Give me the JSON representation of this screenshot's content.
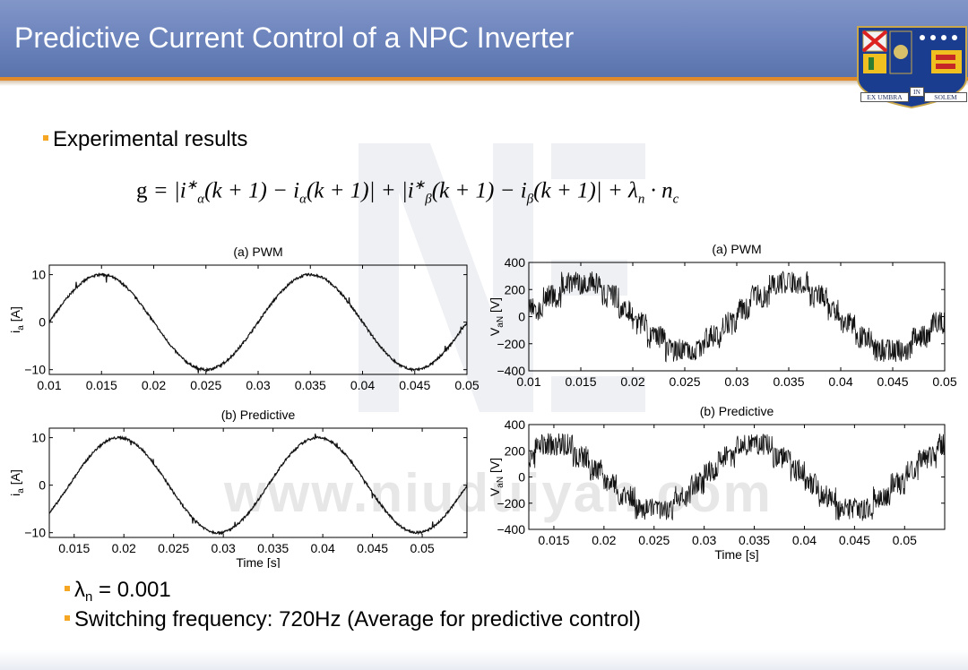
{
  "slide": {
    "title": "Predictive Current Control of a NPC Inverter",
    "bullet_main": "Experimental results",
    "formula_text": "g = |i*α(k+1) − iα(k+1)| + |i*β(k+1) − iβ(k+1)| + λn · nc",
    "lambda_symbol": "λ",
    "lambda_sub": "n",
    "lambda_value": " = 0.001",
    "switching_text": "Switching frequency: 720Hz (Average for predictive control)",
    "watermark": "www.niuduiyan.com",
    "crest_motto_left": "EX UMBRA",
    "crest_motto_mid": "IN",
    "crest_motto_right": "SOLEM",
    "colors": {
      "header": "#6f86be",
      "accent": "#e08a2c",
      "bullet": "#f5a623",
      "waveform": "#111111"
    }
  },
  "chart_data": [
    {
      "type": "line",
      "id": "current-pwm",
      "title": "(a)    PWM",
      "xlabel": "",
      "ylabel": "i_a [A]",
      "ylabel_main": "i",
      "ylabel_sub": "a",
      "ylabel_unit": " [A]",
      "xlim": [
        0.01,
        0.05
      ],
      "ylim": [
        -11,
        12
      ],
      "xticks": [
        0.01,
        0.015,
        0.02,
        0.025,
        0.03,
        0.035,
        0.04,
        0.045,
        0.05
      ],
      "xtick_labels": [
        "0.01",
        "0.015",
        "0.02",
        "0.025",
        "0.03",
        "0.035",
        "0.04",
        "0.045",
        "0.05"
      ],
      "yticks": [
        -10,
        0,
        10
      ],
      "ytick_labels": [
        "−10",
        "0",
        "10"
      ],
      "waveform": {
        "kind": "sine",
        "amplitude": 10,
        "frequency": 50,
        "peak_time": 0.015,
        "ripple": "low"
      }
    },
    {
      "type": "line",
      "id": "current-predictive",
      "title": "(b)    Predictive",
      "xlabel": "Time [s]",
      "ylabel": "i_a [A]",
      "ylabel_main": "i",
      "ylabel_sub": "a",
      "ylabel_unit": " [A]",
      "xlim": [
        0.0125,
        0.0545
      ],
      "ylim": [
        -11,
        12
      ],
      "xticks": [
        0.015,
        0.02,
        0.025,
        0.03,
        0.035,
        0.04,
        0.045,
        0.05
      ],
      "xtick_labels": [
        "0.015",
        "0.02",
        "0.025",
        "0.03",
        "0.035",
        "0.04",
        "0.045",
        "0.05"
      ],
      "yticks": [
        -10,
        0,
        10
      ],
      "ytick_labels": [
        "−10",
        "0",
        "10"
      ],
      "waveform": {
        "kind": "sine",
        "amplitude": 10,
        "frequency": 50,
        "peak_time": 0.0195,
        "ripple": "low"
      }
    },
    {
      "type": "line",
      "id": "voltage-pwm",
      "title": "(a)    PWM",
      "xlabel": "",
      "ylabel": "V_aN [V]",
      "ylabel_main": "V",
      "ylabel_sub": "aN",
      "ylabel_unit": " [V]",
      "xlim": [
        0.01,
        0.05
      ],
      "ylim": [
        -400,
        400
      ],
      "xticks": [
        0.01,
        0.015,
        0.02,
        0.025,
        0.03,
        0.035,
        0.04,
        0.045,
        0.05
      ],
      "xtick_labels": [
        "0.01",
        "0.015",
        "0.02",
        "0.025",
        "0.03",
        "0.035",
        "0.04",
        "0.045",
        "0.05"
      ],
      "yticks": [
        -400,
        -200,
        0,
        200,
        400
      ],
      "ytick_labels": [
        "−400",
        "−200",
        "0",
        "200",
        "400"
      ],
      "waveform": {
        "kind": "stepped",
        "amplitude": 240,
        "frequency": 50,
        "peak_time": 0.015,
        "level_step": 200,
        "noise": "high"
      }
    },
    {
      "type": "line",
      "id": "voltage-predictive",
      "title": "(b)    Predictive",
      "xlabel": "Time [s]",
      "ylabel": "V_aN [V]",
      "ylabel_main": "V",
      "ylabel_sub": "aN",
      "ylabel_unit": " [V]",
      "xlim": [
        0.0125,
        0.054
      ],
      "ylim": [
        -400,
        400
      ],
      "xticks": [
        0.015,
        0.02,
        0.025,
        0.03,
        0.035,
        0.04,
        0.045,
        0.05
      ],
      "xtick_labels": [
        "0.015",
        "0.02",
        "0.025",
        "0.03",
        "0.035",
        "0.04",
        "0.045",
        "0.05"
      ],
      "yticks": [
        -400,
        -200,
        0,
        200,
        400
      ],
      "ytick_labels": [
        "−400",
        "−200",
        "0",
        "200",
        "400"
      ],
      "waveform": {
        "kind": "stepped",
        "amplitude": 240,
        "frequency": 50,
        "peak_time": 0.035,
        "level_step": 200,
        "noise": "high"
      }
    }
  ]
}
